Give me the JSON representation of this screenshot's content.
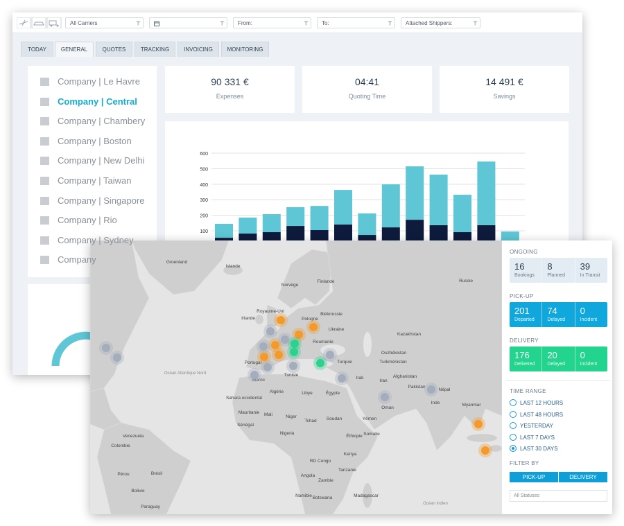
{
  "filters": {
    "carriers": "All Carriers",
    "from": "From:",
    "to": "To:",
    "shippers": "Attached Shippers:"
  },
  "tabs": [
    "TODAY",
    "GENERAL",
    "QUOTES",
    "TRACKING",
    "INVOICING",
    "MONITORING"
  ],
  "companies": [
    "Company | Le Havre",
    "Company | Central",
    "Company | Chambery",
    "Company | Boston",
    "Company | New Delhi",
    "Company | Taiwan",
    "Company | Singapore",
    "Company | Rio",
    "Company | Sydney",
    "Company"
  ],
  "kpis": [
    {
      "value": "90 331 €",
      "label": "Expenses"
    },
    {
      "value": "04:41",
      "label": "Quoting Time"
    },
    {
      "value": "14 491 €",
      "label": "Savings"
    }
  ],
  "chart_data": {
    "type": "bar",
    "stacked": true,
    "categories": [
      null,
      null,
      null,
      null,
      null,
      null,
      null,
      null,
      null,
      null,
      null,
      null,
      null
    ],
    "series": [
      {
        "color": "#0e1b3d",
        "values": [
          55,
          82,
          91,
          131,
          105,
          140,
          73,
          122,
          171,
          136,
          91,
          136,
          0
        ]
      },
      {
        "color": "#5fc6d5",
        "values": [
          90,
          103,
          116,
          121,
          155,
          223,
          139,
          277,
          344,
          326,
          241,
          410,
          95
        ]
      }
    ],
    "ylim": [
      0,
      600
    ],
    "yticks": [
      100,
      200,
      300,
      400,
      500,
      600
    ],
    "grid": true
  },
  "map": {
    "labels": [
      "Groenland",
      "Islande",
      "Norvège",
      "Finlande",
      "Russie",
      "Irlande",
      "Royaume-Uni",
      "Pologne",
      "Biélorussie",
      "Ukraine",
      "Kazakhstan",
      "Roumanie",
      "Turquie",
      "Ouzbékistan",
      "Turkménistan",
      "Portugal",
      "Maroc",
      "Tunisie",
      "Algérie",
      "Libye",
      "Égypte",
      "Irak",
      "Iran",
      "Afghanistan",
      "Pakistan",
      "Népal",
      "Inde",
      "Myanmar",
      "Océan Atlantique Nord",
      "Sahara occidental",
      "Mauritanie",
      "Mali",
      "Niger",
      "Tchad",
      "Soudan",
      "Yémen",
      "Oman",
      "Sénégal",
      "Nigeria",
      "Éthiopie",
      "Somalie",
      "Venezuela",
      "Colombie",
      "RD Congo",
      "Kenya",
      "Tanzanie",
      "Angola",
      "Zambie",
      "Brésil",
      "Pérou",
      "Bolivie",
      "Namibie",
      "Botswana",
      "Madagascar",
      "Paraguay",
      "Océan Indien"
    ]
  },
  "panel": {
    "ongoing": {
      "title": "ONGOING",
      "stats": [
        {
          "value": 16,
          "label": "Bookings"
        },
        {
          "value": 8,
          "label": "Planned"
        },
        {
          "value": 39,
          "label": "In Transit"
        }
      ]
    },
    "pickup": {
      "title": "PICK-UP",
      "stats": [
        {
          "value": 201,
          "label": "Departed"
        },
        {
          "value": 74,
          "label": "Delayed"
        },
        {
          "value": 0,
          "label": "Incident"
        }
      ]
    },
    "delivery": {
      "title": "DELIVERY",
      "stats": [
        {
          "value": 176,
          "label": "Delivered"
        },
        {
          "value": 20,
          "label": "Delayed"
        },
        {
          "value": 0,
          "label": "Incident"
        }
      ]
    },
    "time_range": {
      "title": "TIME RANGE",
      "options": [
        "LAST 12 HOURS",
        "LAST 48 HOURS",
        "YESTERDAY",
        "LAST 7 DAYS",
        "LAST 30 DAYS"
      ]
    },
    "filter_by": {
      "title": "FILTER BY",
      "buttons": [
        "PICK-UP",
        "DELIVERY"
      ]
    },
    "status_select": "All Statuses"
  }
}
